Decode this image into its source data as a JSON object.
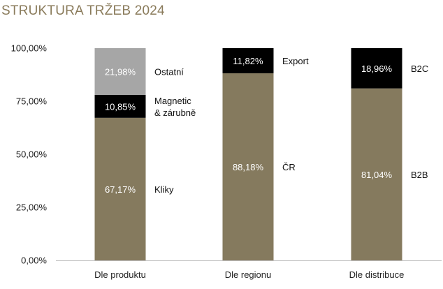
{
  "chart_data": {
    "type": "bar",
    "stacked": true,
    "title": "STRUKTURA TRŽEB 2024",
    "xlabel": "",
    "ylabel": "",
    "ylim": [
      0,
      100
    ],
    "yticks": [
      "0,00%",
      "25,00%",
      "50,00%",
      "75,00%",
      "100,00%"
    ],
    "categories": [
      "Dle produktu",
      "Dle regionu",
      "Dle distribuce"
    ],
    "colors": {
      "olive": "#857a5e",
      "black": "#000000",
      "gray": "#a6a6a6",
      "axis": "#bfbfbf",
      "title": "#8a7b5b"
    },
    "bars": [
      {
        "category": "Dle produktu",
        "segments": [
          {
            "label": "Kliky",
            "value": 67.17,
            "display": "67,17%",
            "color": "olive"
          },
          {
            "label": "Magnetic & zárubně",
            "label_lines": [
              "Magnetic",
              "& zárubně"
            ],
            "value": 10.85,
            "display": "10,85%",
            "color": "black"
          },
          {
            "label": "Ostatní",
            "value": 21.98,
            "display": "21,98%",
            "color": "gray"
          }
        ]
      },
      {
        "category": "Dle regionu",
        "segments": [
          {
            "label": "ČR",
            "value": 88.18,
            "display": "88,18%",
            "color": "olive"
          },
          {
            "label": "Export",
            "value": 11.82,
            "display": "11,82%",
            "color": "black"
          }
        ]
      },
      {
        "category": "Dle distribuce",
        "segments": [
          {
            "label": "B2B",
            "value": 81.04,
            "display": "81,04%",
            "color": "olive"
          },
          {
            "label": "B2C",
            "value": 18.96,
            "display": "18,96%",
            "color": "black"
          }
        ]
      }
    ]
  }
}
